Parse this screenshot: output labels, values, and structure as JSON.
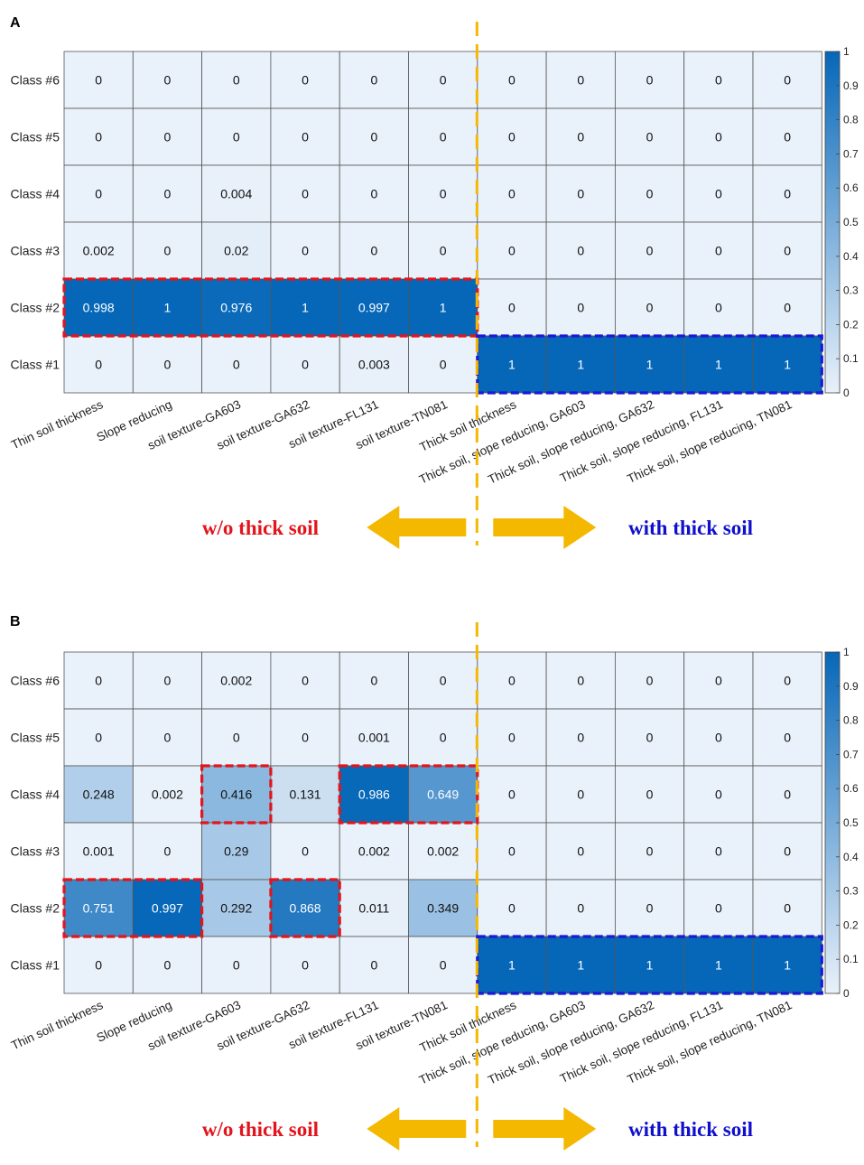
{
  "chart_data": [
    {
      "type": "heatmap",
      "panel": "A",
      "rows": [
        "Class #6",
        "Class #5",
        "Class #4",
        "Class #3",
        "Class #2",
        "Class #1"
      ],
      "columns": [
        "Thin soil thickness",
        "Slope reducing",
        "soil texture-GA603",
        "soil texture-GA632",
        "soil texture-FL131",
        "soil texture-TN081",
        "Thick soil thickness",
        "Thick soil, slope reducing, GA603",
        "Thick soil, slope reducing, GA632",
        "Thick soil, slope reducing, FL131",
        "Thick soil, slope reducing, TN081"
      ],
      "labels": [
        [
          "0",
          "0",
          "0",
          "0",
          "0",
          "0",
          "0",
          "0",
          "0",
          "0",
          "0"
        ],
        [
          "0",
          "0",
          "0",
          "0",
          "0",
          "0",
          "0",
          "0",
          "0",
          "0",
          "0"
        ],
        [
          "0",
          "0",
          "0.004",
          "0",
          "0",
          "0",
          "0",
          "0",
          "0",
          "0",
          "0"
        ],
        [
          "0.002",
          "0",
          "0.02",
          "0",
          "0",
          "0",
          "0",
          "0",
          "0",
          "0",
          "0"
        ],
        [
          "0.998",
          "1",
          "0.976",
          "1",
          "0.997",
          "1",
          "0",
          "0",
          "0",
          "0",
          "0"
        ],
        [
          "0",
          "0",
          "0",
          "0",
          "0.003",
          "0",
          "1",
          "1",
          "1",
          "1",
          "1"
        ]
      ],
      "colorbar": {
        "range": [
          0,
          1
        ],
        "ticks": [
          "0",
          "0.1",
          "0.2",
          "0.3",
          "0.4",
          "0.5",
          "0.6",
          "0.7",
          "0.8",
          "0.9",
          "1"
        ]
      },
      "highlights": [
        {
          "color": "red",
          "row_start": 4,
          "row_end": 4,
          "col_start": 0,
          "col_end": 5
        },
        {
          "color": "blue",
          "row_start": 5,
          "row_end": 5,
          "col_start": 6,
          "col_end": 10
        }
      ],
      "annotations": {
        "left_group": "w/o thick soil",
        "right_group": "with thick soil"
      }
    },
    {
      "type": "heatmap",
      "panel": "B",
      "rows": [
        "Class #6",
        "Class #5",
        "Class #4",
        "Class #3",
        "Class #2",
        "Class #1"
      ],
      "columns": [
        "Thin soil thickness",
        "Slope reducing",
        "soil texture-GA603",
        "soil texture-GA632",
        "soil texture-FL131",
        "soil texture-TN081",
        "Thick soil thickness",
        "Thick soil, slope reducing, GA603",
        "Thick soil, slope reducing, GA632",
        "Thick soil, slope reducing, FL131",
        "Thick soil, slope reducing, TN081"
      ],
      "labels": [
        [
          "0",
          "0",
          "0.002",
          "0",
          "0",
          "0",
          "0",
          "0",
          "0",
          "0",
          "0"
        ],
        [
          "0",
          "0",
          "0",
          "0",
          "0.001",
          "0",
          "0",
          "0",
          "0",
          "0",
          "0"
        ],
        [
          "0.248",
          "0.002",
          "0.416",
          "0.131",
          "0.986",
          "0.649",
          "0",
          "0",
          "0",
          "0",
          "0"
        ],
        [
          "0.001",
          "0",
          "0.29",
          "0",
          "0.002",
          "0.002",
          "0",
          "0",
          "0",
          "0",
          "0"
        ],
        [
          "0.751",
          "0.997",
          "0.292",
          "0.868",
          "0.011",
          "0.349",
          "0",
          "0",
          "0",
          "0",
          "0"
        ],
        [
          "0",
          "0",
          "0",
          "0",
          "0",
          "0",
          "1",
          "1",
          "1",
          "1",
          "1"
        ]
      ],
      "colorbar": {
        "range": [
          0,
          1
        ],
        "ticks": [
          "0",
          "0.1",
          "0.2",
          "0.3",
          "0.4",
          "0.5",
          "0.6",
          "0.7",
          "0.8",
          "0.9",
          "1"
        ]
      },
      "highlights": [
        {
          "color": "red",
          "row_start": 2,
          "row_end": 2,
          "col_start": 2,
          "col_end": 2
        },
        {
          "color": "red",
          "row_start": 2,
          "row_end": 2,
          "col_start": 4,
          "col_end": 5
        },
        {
          "color": "red",
          "row_start": 4,
          "row_end": 4,
          "col_start": 0,
          "col_end": 1
        },
        {
          "color": "red",
          "row_start": 4,
          "row_end": 4,
          "col_start": 3,
          "col_end": 3
        },
        {
          "color": "blue",
          "row_start": 5,
          "row_end": 5,
          "col_start": 6,
          "col_end": 10
        }
      ],
      "annotations": {
        "left_group": "w/o thick soil",
        "right_group": "with thick soil"
      }
    }
  ],
  "colors": {
    "low": "#e9f1fa",
    "high": "#0667b8",
    "grid": "#555555",
    "red_box": "#e3141c",
    "blue_box": "#1a1ad6",
    "divider": "#f5b800",
    "arrow": "#f5b800",
    "left_text": "#e3141c",
    "right_text": "#1010cc"
  }
}
